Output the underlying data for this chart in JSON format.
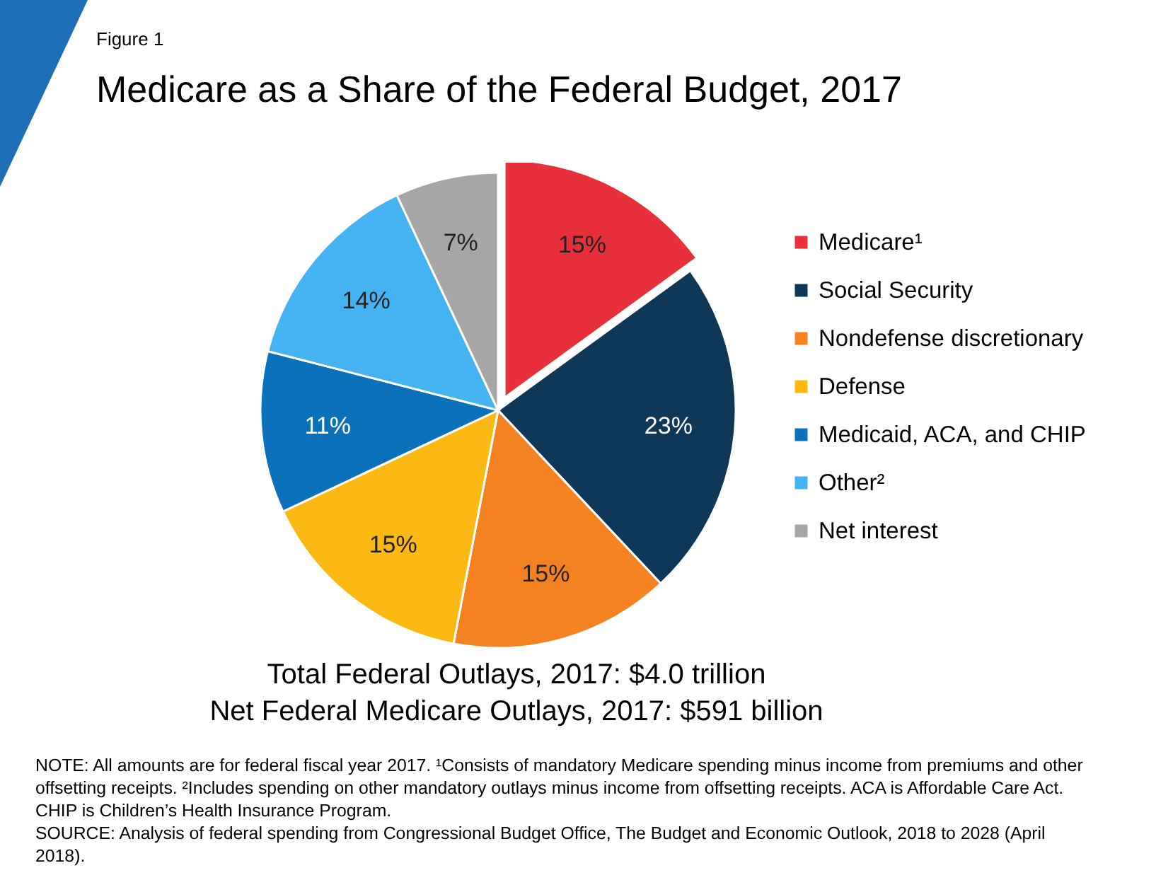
{
  "chart_data": {
    "type": "pie",
    "title": "Medicare as a Share of the Federal Budget, 2017",
    "categories": [
      "Medicare¹",
      "Social Security",
      "Nondefense discretionary",
      "Defense",
      "Medicaid, ACA, and CHIP",
      "Other²",
      "Net interest"
    ],
    "values": [
      15,
      23,
      15,
      15,
      11,
      14,
      7
    ],
    "colors": [
      "#e8303a",
      "#0f3758",
      "#f58220",
      "#fdb913",
      "#0c71bb",
      "#45b3f2",
      "#a6a6a6"
    ],
    "value_labels": [
      "15%",
      "23%",
      "15%",
      "15%",
      "11%",
      "14%",
      "7%"
    ],
    "legend": "right",
    "annotations": [
      "Figure 1",
      "Total Federal Outlays, 2017: $4.0 trillion",
      "Net Federal Medicare Outlays, 2017: $591 billion",
      "NOTE: All amounts are for federal fiscal year 2017. ¹Consists of mandatory Medicare spending minus income from premiums and other offsetting receipts. ²Includes spending on other mandatory outlays minus income from offsetting receipts. ACA is Affordable Care Act. CHIP is Children’s Health Insurance Program.",
      "SOURCE: Analysis of federal spending from Congressional Budget Office, The Budget and Economic Outlook, 2018 to 2028 (April 2018)."
    ]
  }
}
